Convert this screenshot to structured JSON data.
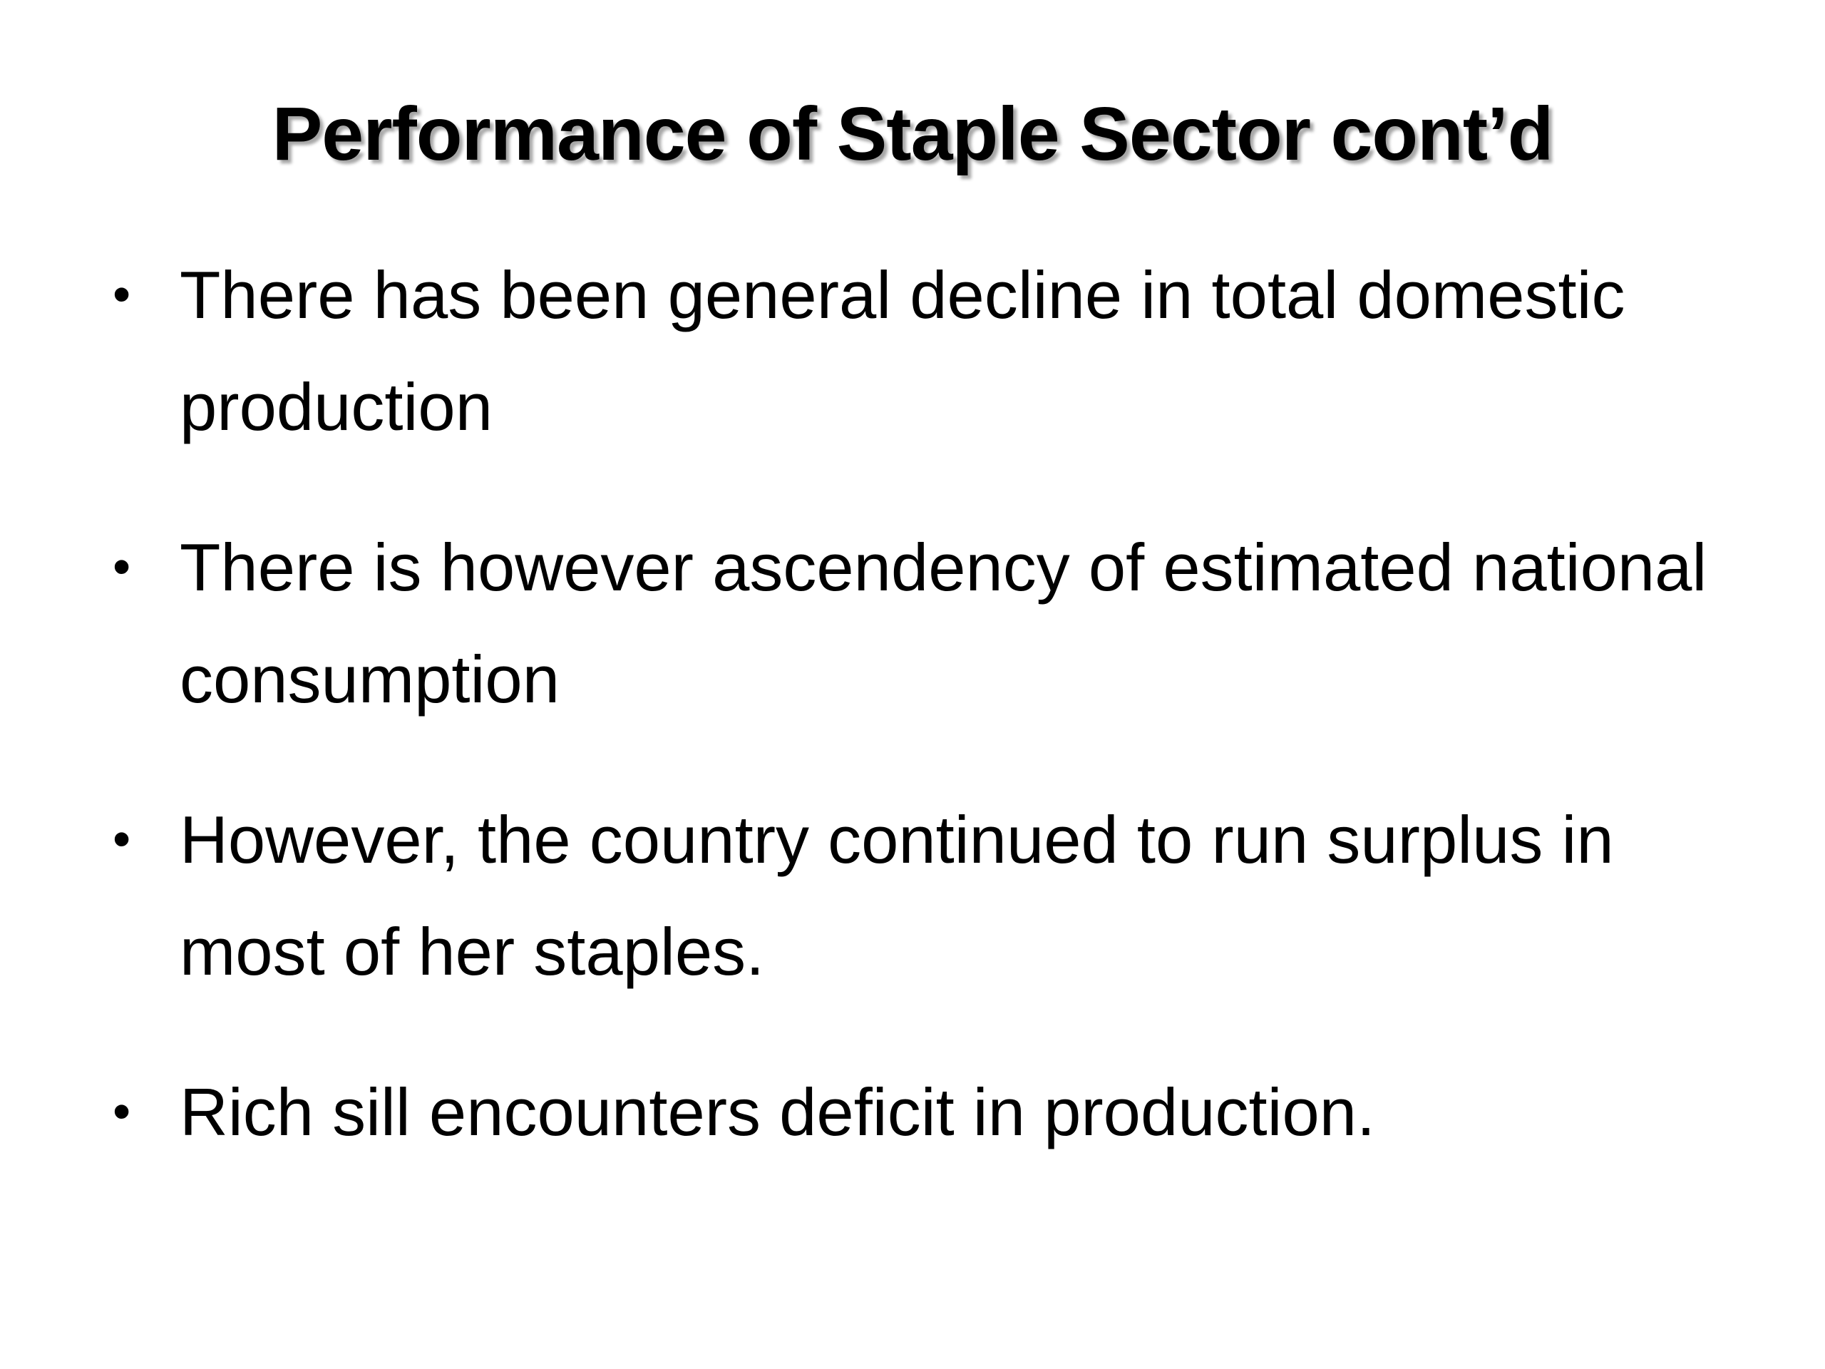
{
  "slide": {
    "title": "Performance of Staple Sector cont’d",
    "bullet_marker": "•",
    "bullets": [
      "There has been general decline in total domestic production",
      "There is however ascendency of  estimated national consumption",
      "However, the country continued to run surplus in most of her staples.",
      "Rich sill encounters deficit in production."
    ]
  }
}
